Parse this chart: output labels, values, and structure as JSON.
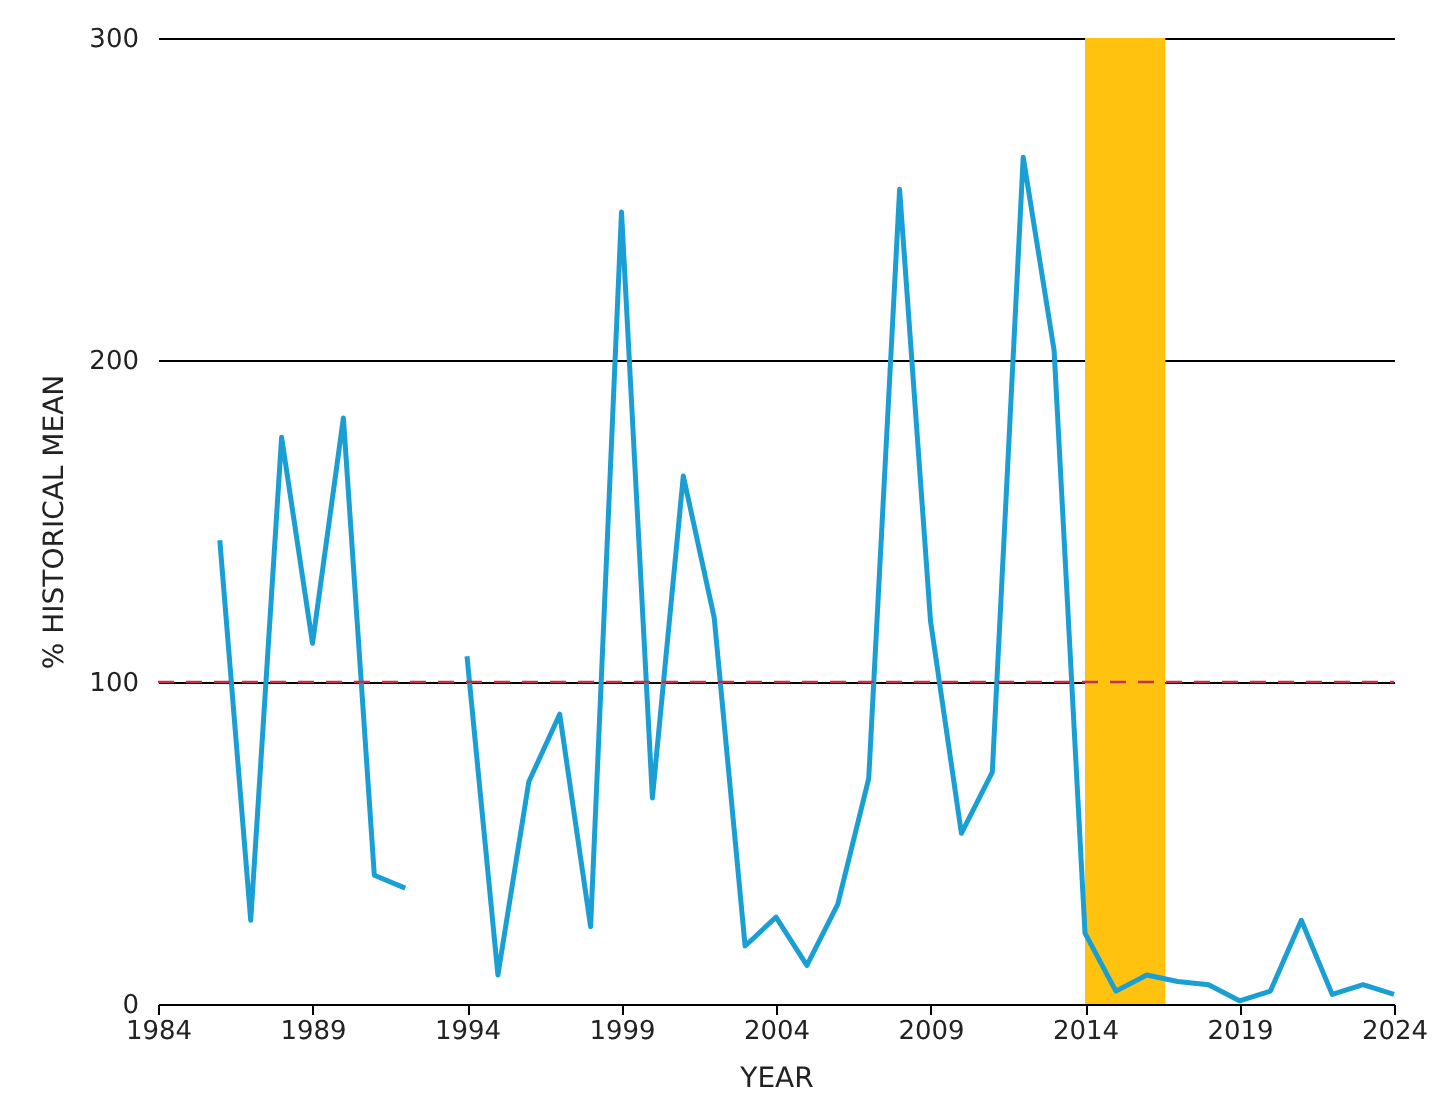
{
  "chart_data": {
    "type": "line",
    "xlabel": "YEAR",
    "ylabel": "% HISTORICAL MEAN",
    "x": [
      1986,
      1987,
      1988,
      1989,
      1990,
      1991,
      1992,
      1993,
      1994,
      1995,
      1996,
      1997,
      1998,
      1999,
      2000,
      2001,
      2002,
      2003,
      2004,
      2005,
      2006,
      2007,
      2008,
      2009,
      2010,
      2011,
      2012,
      2013,
      2014,
      2015,
      2016,
      2017,
      2018,
      2019,
      2020,
      2021,
      2022,
      2023,
      2024
    ],
    "series": [
      {
        "color": "#1a9fd4",
        "values": [
          144,
          26,
          176,
          112,
          182,
          40,
          36,
          null,
          108,
          9,
          69,
          90,
          24,
          246,
          64,
          164,
          120,
          18,
          27,
          12,
          31,
          70,
          253,
          119,
          53,
          72,
          263,
          203,
          22,
          4,
          9,
          7,
          6,
          1,
          4,
          26,
          3,
          6,
          3
        ]
      }
    ],
    "xlim": [
      1984,
      2024
    ],
    "xticks": [
      1984,
      1989,
      1994,
      1999,
      2004,
      2009,
      2014,
      2019,
      2024
    ],
    "ylim": [
      0,
      300
    ],
    "yticks": [
      0,
      100,
      200,
      300
    ],
    "ref_lines": [
      {
        "axis": "y",
        "value": 100,
        "color": "#c0304a",
        "line_style": "dashed"
      }
    ],
    "bands": [
      {
        "axis": "x",
        "from": 2014,
        "to": 2016.6,
        "color": "#ffc20e"
      }
    ],
    "grid": "y",
    "marker": "none",
    "line_style": "solid"
  }
}
